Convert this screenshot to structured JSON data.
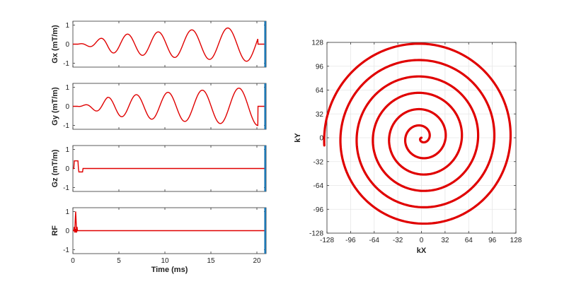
{
  "chart_data": [
    {
      "type": "line",
      "ylabel": "Gx (mT/m)",
      "xlim": [
        0,
        21
      ],
      "ylim": [
        -1.2,
        1.2
      ],
      "yticks": [
        -1,
        0,
        1
      ],
      "xticks": [
        0,
        5,
        10,
        15,
        20
      ],
      "xtick_labels_shown": false,
      "series": [
        {
          "color": "#e00000",
          "description_values": {
            "start_ms": 0.5,
            "end_ms": 20.1,
            "cycles": 6,
            "peak_amplitude": 0.92,
            "final_jump_ms": 20.1
          }
        }
      ],
      "marker_line": {
        "x": 20.9,
        "color": "#1f78b4"
      }
    },
    {
      "type": "line",
      "ylabel": "Gy (mT/m)",
      "xlim": [
        0,
        21
      ],
      "ylim": [
        -1.2,
        1.2
      ],
      "yticks": [
        -1,
        0,
        1
      ],
      "xticks": [
        0,
        5,
        10,
        15,
        20
      ],
      "xtick_labels_shown": false,
      "series": [
        {
          "color": "#e00000",
          "description_values": {
            "start_ms": 0.5,
            "end_ms": 20.1,
            "cycles": 6,
            "peak_amplitude": 1.0
          }
        }
      ],
      "marker_line": {
        "x": 20.9,
        "color": "#1f78b4"
      }
    },
    {
      "type": "line",
      "ylabel": "Gz (mT/m)",
      "xlim": [
        0,
        21
      ],
      "ylim": [
        -1.2,
        1.2
      ],
      "yticks": [
        -1,
        0,
        1
      ],
      "xticks": [
        0,
        5,
        10,
        15,
        20
      ],
      "xtick_labels_shown": false,
      "series": [
        {
          "color": "#e00000",
          "points": [
            [
              0.0,
              0
            ],
            [
              0.1,
              0
            ],
            [
              0.15,
              0.4
            ],
            [
              0.55,
              0.4
            ],
            [
              0.6,
              0
            ],
            [
              0.65,
              -0.18
            ],
            [
              1.05,
              -0.18
            ],
            [
              1.1,
              0
            ],
            [
              20.9,
              0
            ]
          ]
        }
      ],
      "marker_line": {
        "x": 20.9,
        "color": "#1f78b4"
      }
    },
    {
      "type": "line",
      "ylabel": "RF",
      "xlabel": "Time (ms)",
      "xlim": [
        0,
        21
      ],
      "ylim": [
        -1.2,
        1.2
      ],
      "yticks": [
        -1,
        0,
        1
      ],
      "xticks": [
        0,
        5,
        10,
        15,
        20
      ],
      "xtick_labels_shown": true,
      "series": [
        {
          "color": "#e00000",
          "points": [
            [
              0.0,
              0
            ],
            [
              0.1,
              0
            ],
            [
              0.15,
              0.2
            ],
            [
              0.2,
              -0.1
            ],
            [
              0.25,
              0.5
            ],
            [
              0.3,
              1.0
            ],
            [
              0.35,
              0.5
            ],
            [
              0.4,
              -0.1
            ],
            [
              0.45,
              0.2
            ],
            [
              0.5,
              0
            ],
            [
              20.9,
              0
            ]
          ]
        }
      ],
      "marker_line": {
        "x": 20.9,
        "color": "#1f78b4"
      }
    },
    {
      "type": "line",
      "xlabel": "kX",
      "ylabel": "kY",
      "xlim": [
        -128,
        128
      ],
      "ylim": [
        -128,
        128
      ],
      "xticks": [
        -128,
        -96,
        -64,
        -32,
        0,
        32,
        64,
        96,
        128
      ],
      "yticks": [
        -128,
        -96,
        -64,
        -32,
        0,
        32,
        64,
        96,
        128
      ],
      "grid": true,
      "series": [
        {
          "color": "#e00000",
          "spiral": {
            "turns": 6,
            "start_radius": 0,
            "end_radius": 132,
            "end_point": [
              -128,
              -10
            ]
          }
        }
      ]
    }
  ]
}
